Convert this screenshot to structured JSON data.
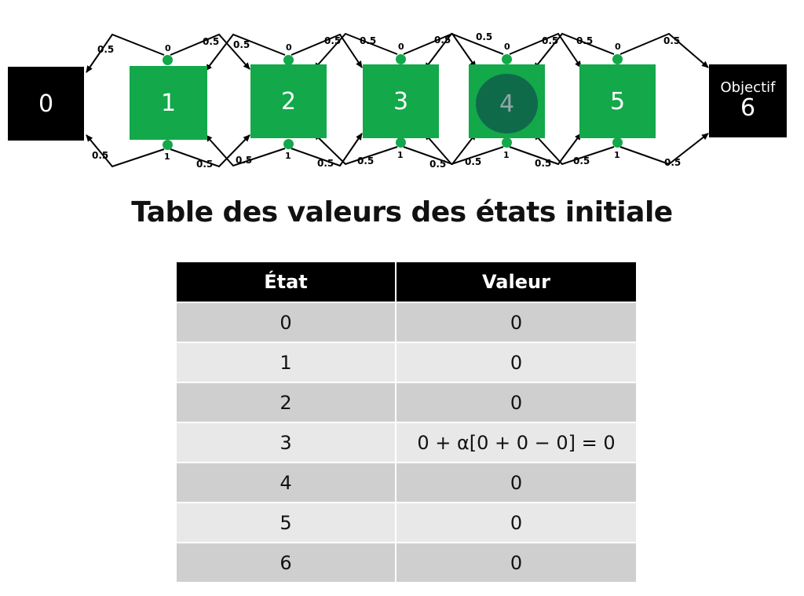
{
  "diagram": {
    "states": [
      {
        "id": "0",
        "kind": "terminal",
        "color": "#000000"
      },
      {
        "id": "1",
        "kind": "nonterminal",
        "color": "#13a84a"
      },
      {
        "id": "2",
        "kind": "nonterminal",
        "color": "#13a84a"
      },
      {
        "id": "3",
        "kind": "nonterminal",
        "color": "#13a84a"
      },
      {
        "id": "4",
        "kind": "nonterminal",
        "color": "#13a84a",
        "agent": true
      },
      {
        "id": "5",
        "kind": "nonterminal",
        "color": "#13a84a"
      },
      {
        "id": "6",
        "kind": "terminal",
        "label": "Objectif",
        "color": "#000000"
      }
    ],
    "action_labels": {
      "top": "0",
      "bottom": "1"
    },
    "transition_prob": "0.5",
    "agent_color": "#0f6a4a"
  },
  "title": "Table des valeurs des états initiale",
  "table": {
    "headers": [
      "État",
      "Valeur"
    ],
    "rows": [
      {
        "state": "0",
        "value": "0"
      },
      {
        "state": "1",
        "value": "0"
      },
      {
        "state": "2",
        "value": "0"
      },
      {
        "state": "3",
        "value": "0 + α[0 + 0 − 0] = 0"
      },
      {
        "state": "4",
        "value": "0"
      },
      {
        "state": "5",
        "value": "0"
      },
      {
        "state": "6",
        "value": "0"
      }
    ]
  }
}
